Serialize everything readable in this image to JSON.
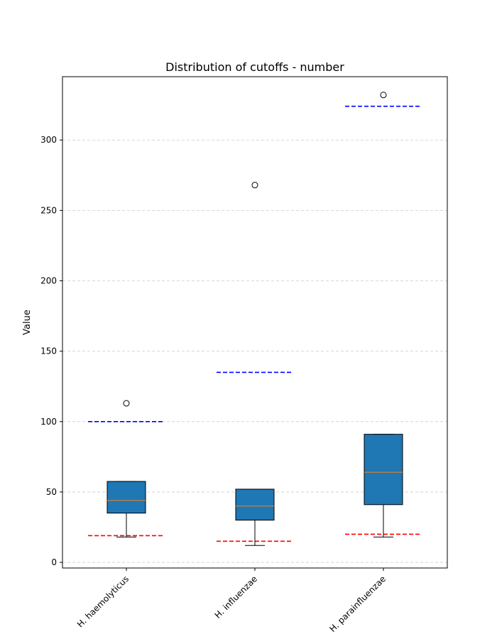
{
  "chart_data": {
    "type": "boxplot",
    "title": "Distribution of cutoffs - number",
    "xlabel": "",
    "ylabel": "Value",
    "ylim": [
      -4,
      345
    ],
    "yticks": [
      0,
      50,
      100,
      150,
      200,
      250,
      300
    ],
    "grid": "y dashed",
    "categories": [
      "H. haemolyticus",
      "H. influenzae",
      "H. parainfluenzae"
    ],
    "boxes": [
      {
        "whisker_low": 18,
        "q1": 35,
        "median": 44,
        "q3": 57.5,
        "whisker_high": 57.5,
        "outliers": [
          113
        ]
      },
      {
        "whisker_low": 12,
        "q1": 30,
        "median": 40,
        "q3": 52,
        "whisker_high": 52,
        "outliers": [
          268
        ]
      },
      {
        "whisker_low": 18,
        "q1": 41,
        "median": 64,
        "q3": 91,
        "whisker_high": 91,
        "outliers": [
          332
        ]
      }
    ],
    "upper_cutoffs": [
      100,
      135,
      324
    ],
    "lower_cutoffs": [
      19,
      15,
      20
    ],
    "colors": {
      "box_fill": "#1f77b4",
      "median": "#ff7f0e",
      "upper_cutoff": "#0000ff",
      "lower_cutoff": "#ff0000",
      "grid": "#cccccc"
    }
  }
}
